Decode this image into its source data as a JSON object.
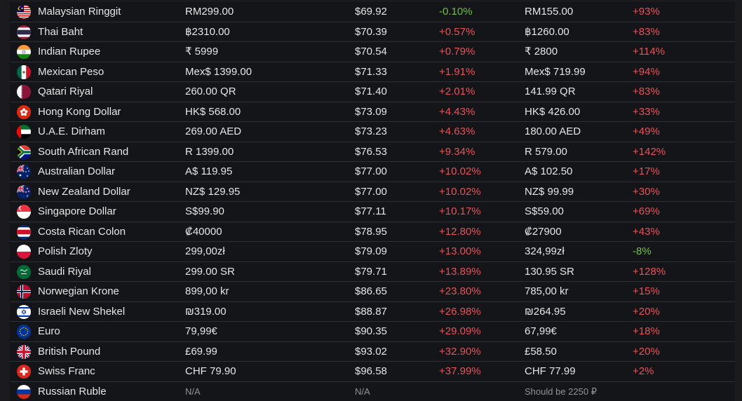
{
  "rows": [
    {
      "currency": "Malaysian Ringgit",
      "price": "RM299.00",
      "usd": "$69.92",
      "diff": "-0.10%",
      "diff_status": "green",
      "old_price": "RM155.00",
      "change": "+93%",
      "change_status": "red",
      "flag_icon": "malaysia-flag-icon"
    },
    {
      "currency": "Thai Baht",
      "price": "฿2310.00",
      "usd": "$70.39",
      "diff": "+0.57%",
      "diff_status": "red",
      "old_price": "฿1260.00",
      "change": "+83%",
      "change_status": "red",
      "flag_icon": "thailand-flag-icon"
    },
    {
      "currency": "Indian Rupee",
      "price": "₹ 5999",
      "usd": "$70.54",
      "diff": "+0.79%",
      "diff_status": "red",
      "old_price": "₹ 2800",
      "change": "+114%",
      "change_status": "red",
      "flag_icon": "india-flag-icon"
    },
    {
      "currency": "Mexican Peso",
      "price": "Mex$ 1399.00",
      "usd": "$71.33",
      "diff": "+1.91%",
      "diff_status": "red",
      "old_price": "Mex$ 719.99",
      "change": "+94%",
      "change_status": "red",
      "flag_icon": "mexico-flag-icon"
    },
    {
      "currency": "Qatari Riyal",
      "price": "260.00 QR",
      "usd": "$71.40",
      "diff": "+2.01%",
      "diff_status": "red",
      "old_price": "141.99 QR",
      "change": "+83%",
      "change_status": "red",
      "flag_icon": "qatar-flag-icon"
    },
    {
      "currency": "Hong Kong Dollar",
      "price": "HK$ 568.00",
      "usd": "$73.09",
      "diff": "+4.43%",
      "diff_status": "red",
      "old_price": "HK$ 426.00",
      "change": "+33%",
      "change_status": "red",
      "flag_icon": "hong-kong-flag-icon"
    },
    {
      "currency": "U.A.E. Dirham",
      "price": "269.00 AED",
      "usd": "$73.23",
      "diff": "+4.63%",
      "diff_status": "red",
      "old_price": "180.00 AED",
      "change": "+49%",
      "change_status": "red",
      "flag_icon": "uae-flag-icon"
    },
    {
      "currency": "South African Rand",
      "price": "R 1399.00",
      "usd": "$76.53",
      "diff": "+9.34%",
      "diff_status": "red",
      "old_price": "R 579.00",
      "change": "+142%",
      "change_status": "red",
      "flag_icon": "south-africa-flag-icon"
    },
    {
      "currency": "Australian Dollar",
      "price": "A$ 119.95",
      "usd": "$77.00",
      "diff": "+10.02%",
      "diff_status": "red",
      "old_price": "A$ 102.50",
      "change": "+17%",
      "change_status": "red",
      "flag_icon": "australia-flag-icon"
    },
    {
      "currency": "New Zealand Dollar",
      "price": "NZ$ 129.95",
      "usd": "$77.00",
      "diff": "+10.02%",
      "diff_status": "red",
      "old_price": "NZ$ 99.99",
      "change": "+30%",
      "change_status": "red",
      "flag_icon": "new-zealand-flag-icon"
    },
    {
      "currency": "Singapore Dollar",
      "price": "S$99.90",
      "usd": "$77.11",
      "diff": "+10.17%",
      "diff_status": "red",
      "old_price": "S$59.00",
      "change": "+69%",
      "change_status": "red",
      "flag_icon": "singapore-flag-icon"
    },
    {
      "currency": "Costa Rican Colon",
      "price": "₡40000",
      "usd": "$78.95",
      "diff": "+12.80%",
      "diff_status": "red",
      "old_price": "₡27900",
      "change": "+43%",
      "change_status": "red",
      "flag_icon": "costa-rica-flag-icon"
    },
    {
      "currency": "Polish Zloty",
      "price": "299,00zł",
      "usd": "$79.09",
      "diff": "+13.00%",
      "diff_status": "red",
      "old_price": "324,99zł",
      "change": "-8%",
      "change_status": "green",
      "flag_icon": "poland-flag-icon"
    },
    {
      "currency": "Saudi Riyal",
      "price": "299.00 SR",
      "usd": "$79.71",
      "diff": "+13.89%",
      "diff_status": "red",
      "old_price": "130.95 SR",
      "change": "+128%",
      "change_status": "red",
      "flag_icon": "saudi-arabia-flag-icon"
    },
    {
      "currency": "Norwegian Krone",
      "price": "899,00 kr",
      "usd": "$86.65",
      "diff": "+23.80%",
      "diff_status": "red",
      "old_price": "785,00 kr",
      "change": "+15%",
      "change_status": "red",
      "flag_icon": "norway-flag-icon"
    },
    {
      "currency": "Israeli New Shekel",
      "price": "₪319.00",
      "usd": "$88.87",
      "diff": "+26.98%",
      "diff_status": "red",
      "old_price": "₪264.95",
      "change": "+20%",
      "change_status": "red",
      "flag_icon": "israel-flag-icon"
    },
    {
      "currency": "Euro",
      "price": "79,99€",
      "usd": "$90.35",
      "diff": "+29.09%",
      "diff_status": "red",
      "old_price": "67,99€",
      "change": "+18%",
      "change_status": "red",
      "flag_icon": "eu-flag-icon"
    },
    {
      "currency": "British Pound",
      "price": "£69.99",
      "usd": "$93.02",
      "diff": "+32.90%",
      "diff_status": "red",
      "old_price": "£58.50",
      "change": "+20%",
      "change_status": "red",
      "flag_icon": "uk-flag-icon"
    },
    {
      "currency": "Swiss Franc",
      "price": "CHF 79.90",
      "usd": "$96.58",
      "diff": "+37.99%",
      "diff_status": "red",
      "old_price": "CHF 77.99",
      "change": "+2%",
      "change_status": "red",
      "flag_icon": "switzerland-flag-icon"
    },
    {
      "currency": "Russian Ruble",
      "price": "N/A",
      "usd": "N/A",
      "diff": "",
      "diff_status": "muted",
      "old_price": "Should be 2250 ₽",
      "change": "",
      "change_status": "muted",
      "flag_icon": "russia-flag-icon"
    }
  ]
}
